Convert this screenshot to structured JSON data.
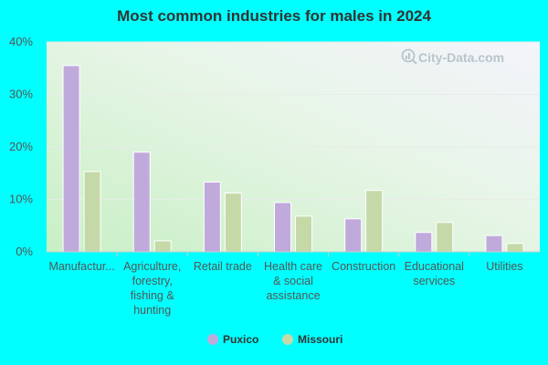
{
  "chart_data": {
    "type": "bar",
    "title": "Most common industries for males in 2024",
    "categories": [
      [
        "Manufactur..."
      ],
      [
        "Agriculture,",
        "forestry,",
        "fishing &",
        "hunting"
      ],
      [
        "Retail trade"
      ],
      [
        "Health care",
        "& social",
        "assistance"
      ],
      [
        "Construction"
      ],
      [
        "Educational",
        "services"
      ],
      [
        "Utilities"
      ]
    ],
    "series": [
      {
        "name": "Puxico",
        "color": "#c0aadc",
        "values": [
          35.5,
          19.0,
          13.3,
          9.4,
          6.3,
          3.7,
          3.1
        ]
      },
      {
        "name": "Missouri",
        "color": "#c5d9a8",
        "values": [
          15.3,
          2.1,
          11.2,
          6.8,
          11.7,
          5.6,
          1.6
        ]
      }
    ],
    "ylim": [
      0,
      40
    ],
    "yticks": [
      "0%",
      "10%",
      "20%",
      "30%",
      "40%"
    ],
    "ytick_values": [
      0,
      10,
      20,
      30,
      40
    ],
    "grid": true,
    "legend_position": "bottom-center",
    "watermark": "City-Data.com"
  }
}
